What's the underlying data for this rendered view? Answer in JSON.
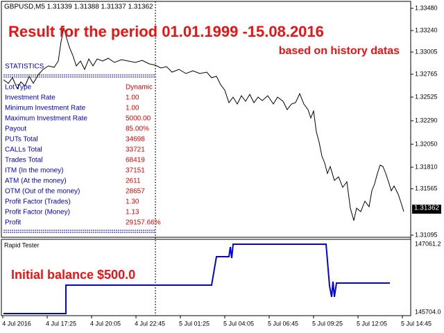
{
  "header": "GBPUSD,M5  1.31339 1.31388 1.31337 1.31362",
  "overlay": {
    "title": "Result for the period 01.01.1999 -15.08.2016",
    "subtitle": "based on history datas"
  },
  "statistics": {
    "title": "STATISTICS",
    "rows": [
      [
        "Lot Type",
        "Dynamic"
      ],
      [
        "Investment Rate",
        "1.00"
      ],
      [
        "Minimum Investment Rate",
        "1.00"
      ],
      [
        "Maximum Investment Rate",
        "5000.00"
      ],
      [
        "Payout",
        "85.00%"
      ],
      [
        "PUTs Total",
        "34698"
      ],
      [
        "CALLs Total",
        "33721"
      ],
      [
        "Trades Total",
        "68419"
      ],
      [
        "ITM (In the money)",
        "37151"
      ],
      [
        "ATM (At the money)",
        "2611"
      ],
      [
        "OTM (Out of the money)",
        "28657"
      ],
      [
        "Profit Factor (Trades)",
        "1.30"
      ],
      [
        "Profit Factor (Money)",
        "1.13"
      ],
      [
        "Profit",
        "29157.66%"
      ]
    ]
  },
  "price_axis": [
    "1.33480",
    "1.33240",
    "1.33005",
    "1.32765",
    "1.32525",
    "1.32290",
    "1.32050",
    "1.31810",
    "1.31565",
    "1.31095"
  ],
  "current_price": "1.31362",
  "subwindow": {
    "title": "Rapid Tester",
    "balance_label": "Initial balance $500.0",
    "axis": [
      "147061.2",
      "145704.0"
    ]
  },
  "time_axis": [
    "4 Jul 2016",
    "4 Jul 17:25",
    "4 Jul 20:05",
    "4 Jul 22:45",
    "5 Jul 01:25",
    "5 Jul 04:05",
    "5 Jul 06:45",
    "5 Jul 09:25",
    "5 Jul 12:05",
    "5 Jul 14:45"
  ]
}
